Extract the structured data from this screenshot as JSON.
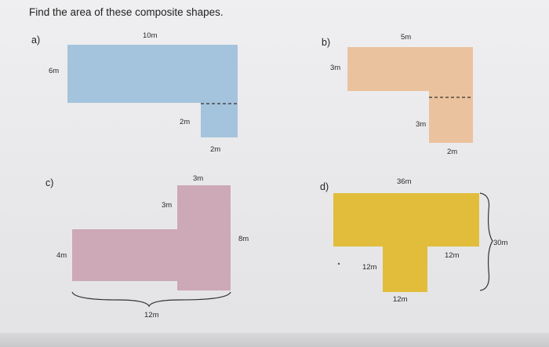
{
  "title": "Find the area of these composite shapes.",
  "colors": {
    "shape_a": "#a4c3dc",
    "shape_b": "#ebc29e",
    "shape_c": "#cda8b6",
    "shape_d": "#e1bd3b"
  },
  "problems": {
    "a": {
      "label": "a)",
      "dims": [
        "10m",
        "6m",
        "2m",
        "2m"
      ]
    },
    "b": {
      "label": "b)",
      "dims": [
        "5m",
        "3m",
        "3m",
        "2m"
      ]
    },
    "c": {
      "label": "c)",
      "dims": [
        "3m",
        "3m",
        "8m",
        "4m",
        "12m"
      ]
    },
    "d": {
      "label": "d)",
      "dims": [
        "36m",
        "30m",
        "12m",
        "12m",
        "12m"
      ]
    }
  }
}
